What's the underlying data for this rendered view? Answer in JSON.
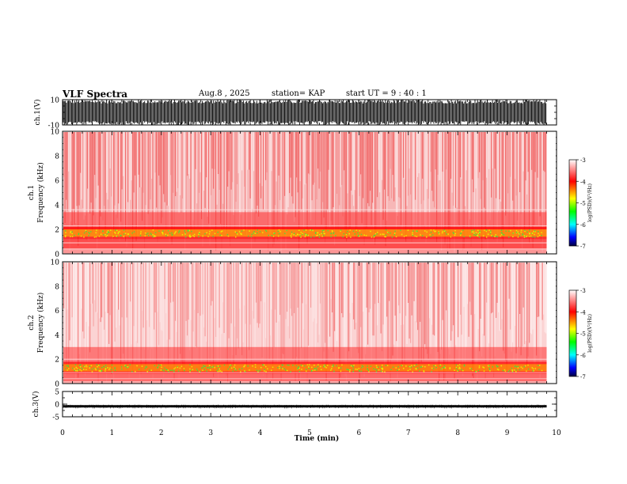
{
  "header": {
    "title": "VLF Spectra",
    "date": "Aug.8 , 2025",
    "station": "station= KAP",
    "start_ut": "start UT = 9 : 40 : 1"
  },
  "chart_data": [
    {
      "id": "ch1-waveform",
      "type": "line",
      "ylabel": "ch.1(V)",
      "yticks": [
        "10",
        "-10"
      ],
      "ylim": [
        -10,
        10
      ],
      "xlim": [
        0,
        10
      ],
      "data_end_min": 9.8
    },
    {
      "id": "ch1-spectrogram",
      "type": "heatmap",
      "ylabel": "ch.1",
      "ylabel2": "Frequency (kHz)",
      "yticks": [
        "0",
        "2",
        "4",
        "6",
        "8",
        "10"
      ],
      "ylim": [
        0,
        10
      ],
      "xlim": [
        0,
        10
      ],
      "data_end_min": 9.8,
      "colorbar": {
        "label": "log(PSD)(V²/Hz)",
        "ticks": [
          "-3",
          "-4",
          "-5",
          "-6",
          "-7"
        ],
        "range": [
          -7,
          -3
        ]
      }
    },
    {
      "id": "ch2-spectrogram",
      "type": "heatmap",
      "ylabel": "ch.2",
      "ylabel2": "Frequency (kHz)",
      "yticks": [
        "0",
        "2",
        "4",
        "6",
        "8",
        "10"
      ],
      "ylim": [
        0,
        10
      ],
      "xlim": [
        0,
        10
      ],
      "data_end_min": 9.8,
      "colorbar": {
        "label": "log(PSD)(V²/Hz)",
        "ticks": [
          "-3",
          "-4",
          "-5",
          "-6",
          "-7"
        ],
        "range": [
          -7,
          -3
        ]
      }
    },
    {
      "id": "ch3-waveform",
      "type": "line",
      "ylabel": "ch.3(V)",
      "yticks": [
        "5",
        "0",
        "-5"
      ],
      "ylim": [
        -5,
        5
      ],
      "xlim": [
        0,
        10
      ],
      "data_end_min": 9.8
    }
  ],
  "xaxis": {
    "label": "Time (min)",
    "ticks": [
      "0",
      "1",
      "2",
      "3",
      "4",
      "5",
      "6",
      "7",
      "8",
      "9",
      "10"
    ]
  }
}
